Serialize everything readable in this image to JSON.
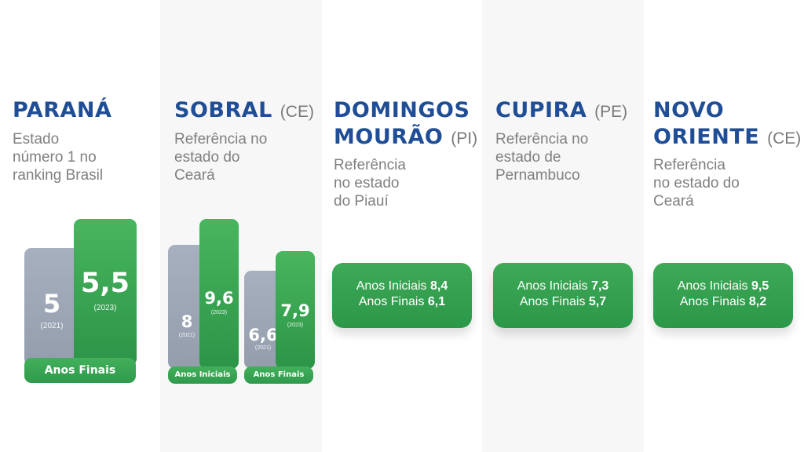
{
  "chart_data": [
    {
      "type": "bar",
      "title": "PARANÁ",
      "subtitle": "Estado\nnúmero 1 no\nranking Brasil",
      "categories": [
        "(2021)",
        "(2023)"
      ],
      "values": [
        "5",
        "5,5"
      ],
      "group_label": "Anos Finais",
      "colors": [
        "#9aa3b2",
        "#34a24f"
      ]
    },
    {
      "type": "bar",
      "title": "SOBRAL",
      "state": "(CE)",
      "subtitle": "Referência no\nestado do\nCeará",
      "groups": [
        {
          "label": "Anos Iniciais",
          "categories": [
            "(2021)",
            "(2023)"
          ],
          "values": [
            "8",
            "9,6"
          ]
        },
        {
          "label": "Anos Finais",
          "categories": [
            "(2021)",
            "(2023)"
          ],
          "values": [
            "6,6",
            "7,9"
          ]
        }
      ],
      "colors": [
        "#9aa3b2",
        "#34a24f"
      ]
    }
  ],
  "cards": [
    {
      "title_l1": "DOMINGOS",
      "title_l2": "MOURÃO",
      "state": "(PI)",
      "subtitle": "Referência\nno estado\ndo Piauí",
      "iniciais_label": "Anos Iniciais",
      "iniciais_value": "8,4",
      "finais_label": "Anos Finais",
      "finais_value": "6,1"
    },
    {
      "title_l1": "CUPIRA",
      "state": "(PE)",
      "subtitle": "Referência no\nestado de\nPernambuco",
      "iniciais_label": "Anos Iniciais",
      "iniciais_value": "7,3",
      "finais_label": "Anos Finais",
      "finais_value": "5,7"
    },
    {
      "title_l1": "NOVO",
      "title_l2": "ORIENTE",
      "state": "(CE)",
      "subtitle": "Referência\nno estado do\nCeará",
      "iniciais_label": "Anos Iniciais",
      "iniciais_value": "9,5",
      "finais_label": "Anos Finais",
      "finais_value": "8,2"
    }
  ],
  "colors": {
    "title_blue": "#1f4e96",
    "green": "#34a24f",
    "gray_bar": "#9aa3b2"
  }
}
